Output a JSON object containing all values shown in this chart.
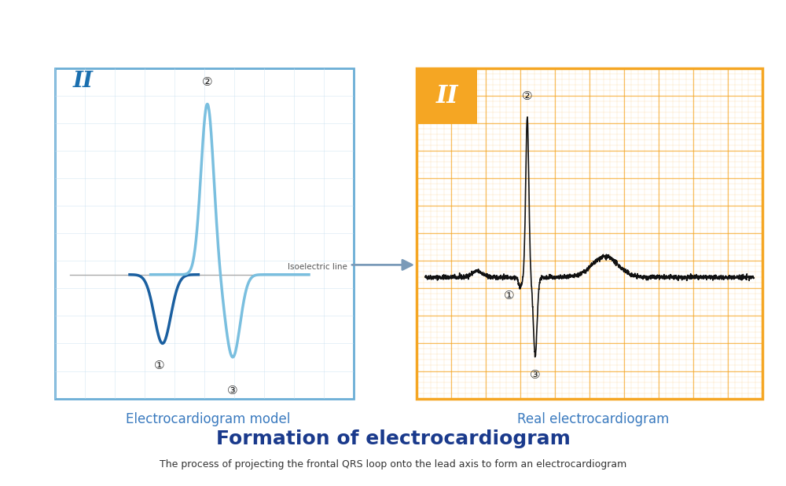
{
  "title": "Formation of electrocardiogram",
  "subtitle": "The process of projecting the frontal QRS loop onto the lead axis to form an electrocardiogram",
  "left_label": "Electrocardiogram model",
  "right_label": "Real electrocardiogram",
  "left_border_color": "#6baed6",
  "right_border_color": "#f5a623",
  "grid_color_right": "#f5a623",
  "grid_color_left": "#c8dff0",
  "lead_color_left": "#1a6faf",
  "isoelectric_color": "#aaaaaa",
  "arrow_color": "#7a9ab8",
  "title_color": "#1a3a8c",
  "label_color": "#3a7abf",
  "subtitle_color": "#333333",
  "ecg_color_left_dark": "#1a5fa0",
  "ecg_color_left_light": "#7abfdf",
  "ecg_color_right": "#111111",
  "annotation_color": "#222222",
  "background": "#ffffff",
  "circle_1": "①",
  "circle_2": "②",
  "circle_3": "③"
}
